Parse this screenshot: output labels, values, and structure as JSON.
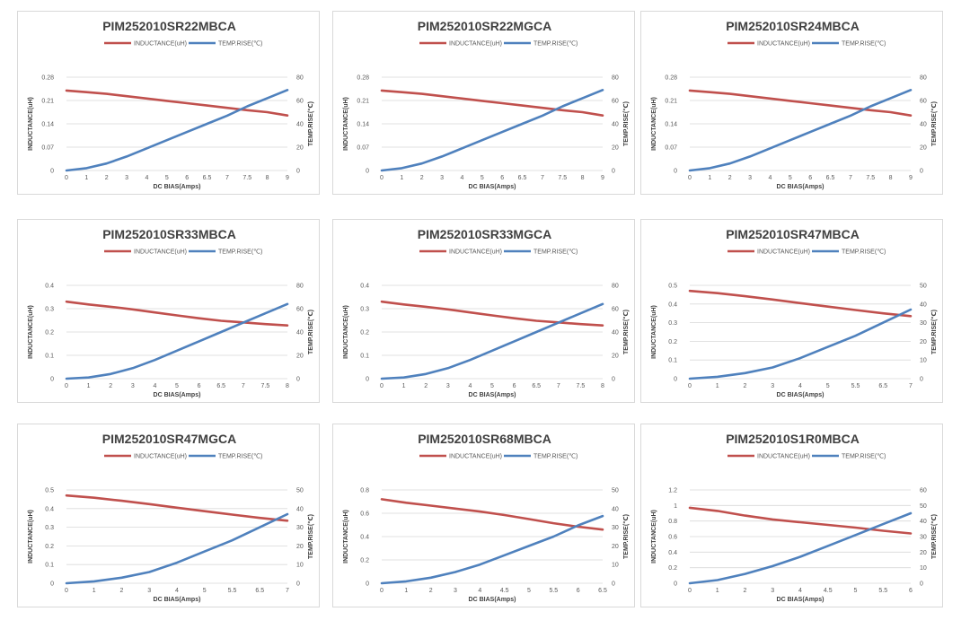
{
  "legend": {
    "inductance": "INDUCTANCE(uH)",
    "temp": "TEMP.RISE(℃)"
  },
  "axes": {
    "xlabel": "DC BIAS(Amps)",
    "ylabel_left": "INDUCTANCE(uH)",
    "ylabel_right": "TEMP.RISE(℃)"
  },
  "colors": {
    "inductance": "#c0504d",
    "temp": "#4f81bd",
    "grid": "#d9d9d9",
    "border": "#d9d9d9"
  },
  "chart_data": [
    {
      "type": "line",
      "title": "PIM252010SR22MBCA",
      "categories": [
        "0",
        "1",
        "2",
        "3",
        "4",
        "5",
        "6",
        "6.5",
        "7",
        "7.5",
        "8",
        "9"
      ],
      "ylim_left": [
        0,
        0.28
      ],
      "yticks_left": [
        "0",
        "0.07",
        "0.14",
        "0.21",
        "0.28"
      ],
      "ylim_right": [
        0,
        80
      ],
      "yticks_right": [
        "0",
        "20",
        "40",
        "60",
        "80"
      ],
      "series": [
        {
          "name": "INDUCTANCE(uH)",
          "axis": "left",
          "values": [
            0.24,
            0.235,
            0.23,
            0.223,
            0.216,
            0.209,
            0.202,
            0.195,
            0.188,
            0.181,
            0.175,
            0.165
          ]
        },
        {
          "name": "TEMP.RISE(℃)",
          "axis": "right",
          "values": [
            0,
            2,
            6,
            12,
            19,
            26,
            33,
            40,
            47,
            55,
            62,
            69
          ]
        }
      ]
    },
    {
      "type": "line",
      "title": "PIM252010SR22MGCA",
      "categories": [
        "0",
        "1",
        "2",
        "3",
        "4",
        "5",
        "6",
        "6.5",
        "7",
        "7.5",
        "8",
        "9"
      ],
      "ylim_left": [
        0,
        0.28
      ],
      "yticks_left": [
        "0",
        "0.07",
        "0.14",
        "0.21",
        "0.28"
      ],
      "ylim_right": [
        0,
        80
      ],
      "yticks_right": [
        "0",
        "20",
        "40",
        "60",
        "80"
      ],
      "series": [
        {
          "name": "INDUCTANCE(uH)",
          "axis": "left",
          "values": [
            0.24,
            0.235,
            0.23,
            0.223,
            0.216,
            0.209,
            0.202,
            0.195,
            0.188,
            0.181,
            0.175,
            0.165
          ]
        },
        {
          "name": "TEMP.RISE(℃)",
          "axis": "right",
          "values": [
            0,
            2,
            6,
            12,
            19,
            26,
            33,
            40,
            47,
            55,
            62,
            69
          ]
        }
      ]
    },
    {
      "type": "line",
      "title": "PIM252010SR24MBCA",
      "categories": [
        "0",
        "1",
        "2",
        "3",
        "4",
        "5",
        "6",
        "6.5",
        "7",
        "7.5",
        "8",
        "9"
      ],
      "ylim_left": [
        0,
        0.28
      ],
      "yticks_left": [
        "0",
        "0.07",
        "0.14",
        "0.21",
        "0.28"
      ],
      "ylim_right": [
        0,
        80
      ],
      "yticks_right": [
        "0",
        "20",
        "40",
        "60",
        "80"
      ],
      "series": [
        {
          "name": "INDUCTANCE(uH)",
          "axis": "left",
          "values": [
            0.24,
            0.235,
            0.23,
            0.223,
            0.216,
            0.209,
            0.202,
            0.195,
            0.188,
            0.181,
            0.175,
            0.165
          ]
        },
        {
          "name": "TEMP.RISE(℃)",
          "axis": "right",
          "values": [
            0,
            2,
            6,
            12,
            19,
            26,
            33,
            40,
            47,
            55,
            62,
            69
          ]
        }
      ]
    },
    {
      "type": "line",
      "title": "PIM252010SR33MBCA",
      "categories": [
        "0",
        "1",
        "2",
        "3",
        "4",
        "5",
        "6",
        "6.5",
        "7",
        "7.5",
        "8"
      ],
      "ylim_left": [
        0,
        0.4
      ],
      "yticks_left": [
        "0",
        "0.1",
        "0.2",
        "0.3",
        "0.4"
      ],
      "ylim_right": [
        0,
        80
      ],
      "yticks_right": [
        "0",
        "20",
        "40",
        "60",
        "80"
      ],
      "series": [
        {
          "name": "INDUCTANCE(uH)",
          "axis": "left",
          "values": [
            0.33,
            0.318,
            0.308,
            0.297,
            0.284,
            0.271,
            0.259,
            0.248,
            0.241,
            0.234,
            0.228
          ]
        },
        {
          "name": "TEMP.RISE(℃)",
          "axis": "right",
          "values": [
            0,
            1,
            4,
            9,
            16,
            24,
            32,
            40,
            48,
            56,
            64
          ]
        }
      ]
    },
    {
      "type": "line",
      "title": "PIM252010SR33MGCA",
      "categories": [
        "0",
        "1",
        "2",
        "3",
        "4",
        "5",
        "6",
        "6.5",
        "7",
        "7.5",
        "8"
      ],
      "ylim_left": [
        0,
        0.4
      ],
      "yticks_left": [
        "0",
        "0.1",
        "0.2",
        "0.3",
        "0.4"
      ],
      "ylim_right": [
        0,
        80
      ],
      "yticks_right": [
        "0",
        "20",
        "40",
        "60",
        "80"
      ],
      "series": [
        {
          "name": "INDUCTANCE(uH)",
          "axis": "left",
          "values": [
            0.33,
            0.318,
            0.308,
            0.297,
            0.284,
            0.271,
            0.259,
            0.248,
            0.241,
            0.234,
            0.228
          ]
        },
        {
          "name": "TEMP.RISE(℃)",
          "axis": "right",
          "values": [
            0,
            1,
            4,
            9,
            16,
            24,
            32,
            40,
            48,
            56,
            64
          ]
        }
      ]
    },
    {
      "type": "line",
      "title": "PIM252010SR47MBCA",
      "categories": [
        "0",
        "1",
        "2",
        "3",
        "4",
        "5",
        "5.5",
        "6.5",
        "7"
      ],
      "ylim_left": [
        0,
        0.5
      ],
      "yticks_left": [
        "0",
        "0.1",
        "0.2",
        "0.3",
        "0.4",
        "0.5"
      ],
      "ylim_right": [
        0,
        50
      ],
      "yticks_right": [
        "0",
        "10",
        "20",
        "30",
        "40",
        "50"
      ],
      "series": [
        {
          "name": "INDUCTANCE(uH)",
          "axis": "left",
          "values": [
            0.47,
            0.458,
            0.442,
            0.424,
            0.405,
            0.386,
            0.368,
            0.35,
            0.335
          ]
        },
        {
          "name": "TEMP.RISE(℃)",
          "axis": "right",
          "values": [
            0,
            1,
            3,
            6,
            11,
            17,
            23,
            30,
            37
          ]
        }
      ]
    },
    {
      "type": "line",
      "title": "PIM252010SR47MGCA",
      "categories": [
        "0",
        "1",
        "2",
        "3",
        "4",
        "5",
        "5.5",
        "6.5",
        "7"
      ],
      "ylim_left": [
        0,
        0.5
      ],
      "yticks_left": [
        "0",
        "0.1",
        "0.2",
        "0.3",
        "0.4",
        "0.5"
      ],
      "ylim_right": [
        0,
        50
      ],
      "yticks_right": [
        "0",
        "10",
        "20",
        "30",
        "40",
        "50"
      ],
      "series": [
        {
          "name": "INDUCTANCE(uH)",
          "axis": "left",
          "values": [
            0.47,
            0.458,
            0.442,
            0.424,
            0.405,
            0.386,
            0.368,
            0.35,
            0.335
          ]
        },
        {
          "name": "TEMP.RISE(℃)",
          "axis": "right",
          "values": [
            0,
            1,
            3,
            6,
            11,
            17,
            23,
            30,
            37
          ]
        }
      ]
    },
    {
      "type": "line",
      "title": "PIM252010SR68MBCA",
      "categories": [
        "0",
        "1",
        "2",
        "3",
        "4",
        "4.5",
        "5",
        "5.5",
        "6",
        "6.5"
      ],
      "ylim_left": [
        0,
        0.8
      ],
      "yticks_left": [
        "0",
        "0.2",
        "0.4",
        "0.6",
        "0.8"
      ],
      "ylim_right": [
        0,
        50
      ],
      "yticks_right": [
        "0",
        "10",
        "20",
        "30",
        "40",
        "50"
      ],
      "series": [
        {
          "name": "INDUCTANCE(uH)",
          "axis": "left",
          "values": [
            0.72,
            0.69,
            0.665,
            0.64,
            0.615,
            0.585,
            0.55,
            0.515,
            0.485,
            0.46
          ]
        },
        {
          "name": "TEMP.RISE(℃)",
          "axis": "right",
          "values": [
            0,
            1,
            3,
            6,
            10,
            15,
            20,
            25,
            31,
            36
          ]
        }
      ]
    },
    {
      "type": "line",
      "title": "PIM252010S1R0MBCA",
      "categories": [
        "0",
        "1",
        "2",
        "3",
        "4",
        "4.5",
        "5",
        "5.5",
        "6"
      ],
      "ylim_left": [
        0,
        1.2
      ],
      "yticks_left": [
        "0",
        "0.2",
        "0.4",
        "0.6",
        "0.8",
        "1",
        "1.2"
      ],
      "ylim_right": [
        0,
        60
      ],
      "yticks_right": [
        "0",
        "10",
        "20",
        "30",
        "40",
        "50",
        "60"
      ],
      "series": [
        {
          "name": "INDUCTANCE(uH)",
          "axis": "left",
          "values": [
            0.97,
            0.93,
            0.87,
            0.82,
            0.785,
            0.75,
            0.715,
            0.675,
            0.64
          ]
        },
        {
          "name": "TEMP.RISE(℃)",
          "axis": "right",
          "values": [
            0,
            2,
            6,
            11,
            17,
            24,
            31,
            38,
            45
          ]
        }
      ]
    }
  ]
}
